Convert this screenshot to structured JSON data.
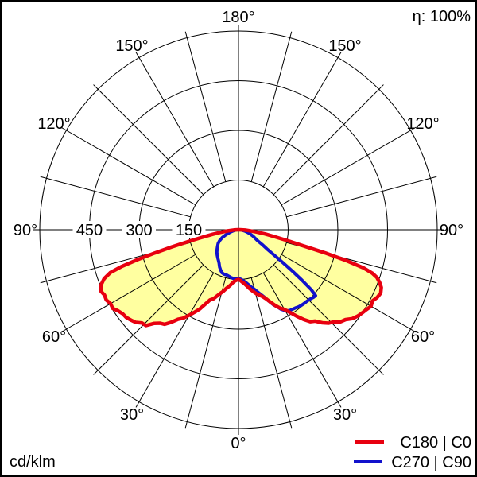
{
  "header": {
    "eta": "η: 100%"
  },
  "footer": {
    "unit": "cd/klm"
  },
  "chart_data": {
    "type": "polar",
    "subtype": "luminous-intensity-distribution",
    "title": "",
    "unit": "cd/klm",
    "efficiency": "100%",
    "scale_max": 600,
    "ring_values": [
      150,
      300,
      450,
      600
    ],
    "ring_labeled": [
      150,
      300,
      450
    ],
    "angle_step_deg": 15,
    "angle_label_step_deg": 30,
    "angle_labels": [
      "0°",
      "30°",
      "60°",
      "90°",
      "120°",
      "150°",
      "180°"
    ],
    "fill_color": "#ffffa0",
    "grid_color": "#000000",
    "legend_position": "bottom-right",
    "series": [
      {
        "name": "C180 | C0",
        "color": "#e8000f",
        "width": 4.5,
        "filled": true,
        "left_gamma_values": [
          [
            90,
            2
          ],
          [
            87,
            14
          ],
          [
            84,
            34
          ],
          [
            82,
            52
          ],
          [
            80,
            78
          ],
          [
            78.5,
            105
          ],
          [
            77,
            150
          ],
          [
            75.5,
            210
          ],
          [
            74.5,
            262
          ],
          [
            73.5,
            320
          ],
          [
            72.5,
            372
          ],
          [
            71.5,
            408
          ],
          [
            70,
            432
          ],
          [
            68,
            448
          ],
          [
            66,
            455
          ],
          [
            64,
            450
          ],
          [
            62,
            452
          ],
          [
            60,
            446
          ],
          [
            58,
            448
          ],
          [
            56,
            438
          ],
          [
            54,
            432
          ],
          [
            52,
            430
          ],
          [
            50,
            424
          ],
          [
            48,
            418
          ],
          [
            46,
            405
          ],
          [
            44,
            402
          ],
          [
            42,
            380
          ],
          [
            40,
            368
          ],
          [
            38,
            362
          ],
          [
            36,
            345
          ],
          [
            34,
            326
          ],
          [
            32,
            315
          ],
          [
            30,
            298
          ],
          [
            28,
            282
          ],
          [
            26,
            266
          ],
          [
            24,
            245
          ],
          [
            22,
            228
          ],
          [
            20,
            222
          ],
          [
            18,
            210
          ],
          [
            16,
            200
          ],
          [
            14,
            192
          ],
          [
            12,
            182
          ],
          [
            10,
            175
          ],
          [
            8,
            168
          ],
          [
            6,
            160
          ],
          [
            4,
            155
          ],
          [
            2,
            152
          ],
          [
            0,
            150
          ]
        ],
        "right_gamma_values": [
          [
            0,
            150
          ],
          [
            2,
            153
          ],
          [
            4,
            158
          ],
          [
            6,
            163
          ],
          [
            8,
            170
          ],
          [
            10,
            178
          ],
          [
            12,
            186
          ],
          [
            14,
            194
          ],
          [
            16,
            202
          ],
          [
            18,
            208
          ],
          [
            20,
            215
          ],
          [
            22,
            226
          ],
          [
            24,
            240
          ],
          [
            26,
            255
          ],
          [
            28,
            268
          ],
          [
            30,
            278
          ],
          [
            32,
            295
          ],
          [
            34,
            315
          ],
          [
            36,
            335
          ],
          [
            38,
            352
          ],
          [
            40,
            360
          ],
          [
            42,
            378
          ],
          [
            44,
            392
          ],
          [
            46,
            400
          ],
          [
            48,
            415
          ],
          [
            50,
            422
          ],
          [
            52,
            436
          ],
          [
            54,
            444
          ],
          [
            56,
            450
          ],
          [
            58,
            455
          ],
          [
            60,
            462
          ],
          [
            62,
            458
          ],
          [
            64,
            466
          ],
          [
            66,
            470
          ],
          [
            68,
            465
          ],
          [
            69.5,
            455
          ],
          [
            71,
            442
          ],
          [
            72,
            425
          ],
          [
            73,
            395
          ],
          [
            74,
            340
          ],
          [
            75,
            275
          ],
          [
            76,
            205
          ],
          [
            77.5,
            150
          ],
          [
            79,
            112
          ],
          [
            81,
            82
          ],
          [
            83,
            55
          ],
          [
            85,
            35
          ],
          [
            87,
            20
          ],
          [
            90,
            4
          ]
        ]
      },
      {
        "name": "C270 | C90",
        "color": "#1212cc",
        "width": 4,
        "filled": false,
        "left_gamma_values": [
          [
            90,
            1
          ],
          [
            85,
            6
          ],
          [
            80,
            13
          ],
          [
            76,
            21
          ],
          [
            72,
            30
          ],
          [
            68,
            42
          ],
          [
            64,
            55
          ],
          [
            60,
            66
          ],
          [
            56,
            74
          ],
          [
            52,
            80
          ],
          [
            48,
            87
          ],
          [
            44,
            94
          ],
          [
            40,
            100
          ],
          [
            36,
            106
          ],
          [
            33,
            111
          ],
          [
            30,
            117
          ],
          [
            27,
            126
          ],
          [
            24,
            133
          ],
          [
            21,
            139
          ],
          [
            18,
            141
          ],
          [
            15,
            141
          ],
          [
            12,
            143
          ],
          [
            9,
            146
          ],
          [
            6,
            148
          ],
          [
            3,
            149
          ],
          [
            0,
            148
          ]
        ],
        "right_gamma_values": [
          [
            0,
            147
          ],
          [
            3,
            150
          ],
          [
            6,
            156
          ],
          [
            9,
            164
          ],
          [
            12,
            175
          ],
          [
            15,
            186
          ],
          [
            17,
            196
          ],
          [
            19,
            206
          ],
          [
            21,
            218
          ],
          [
            23,
            234
          ],
          [
            25,
            250
          ],
          [
            27,
            263
          ],
          [
            28,
            271
          ],
          [
            30,
            282
          ],
          [
            32,
            288
          ],
          [
            34,
            290
          ],
          [
            36,
            292
          ],
          [
            38,
            295
          ],
          [
            40,
            297
          ],
          [
            42,
            298
          ],
          [
            44,
            299
          ],
          [
            46,
            301
          ],
          [
            48,
            305
          ],
          [
            49.5,
            306
          ],
          [
            50.5,
            285
          ],
          [
            51.5,
            245
          ],
          [
            52.5,
            205
          ],
          [
            53.5,
            165
          ],
          [
            54.5,
            132
          ],
          [
            56,
            104
          ],
          [
            58,
            84
          ],
          [
            60,
            68
          ],
          [
            63,
            56
          ],
          [
            66,
            48
          ],
          [
            70,
            38
          ],
          [
            74,
            28
          ],
          [
            78,
            20
          ],
          [
            82,
            13
          ],
          [
            86,
            6
          ],
          [
            90,
            1
          ]
        ]
      }
    ]
  }
}
